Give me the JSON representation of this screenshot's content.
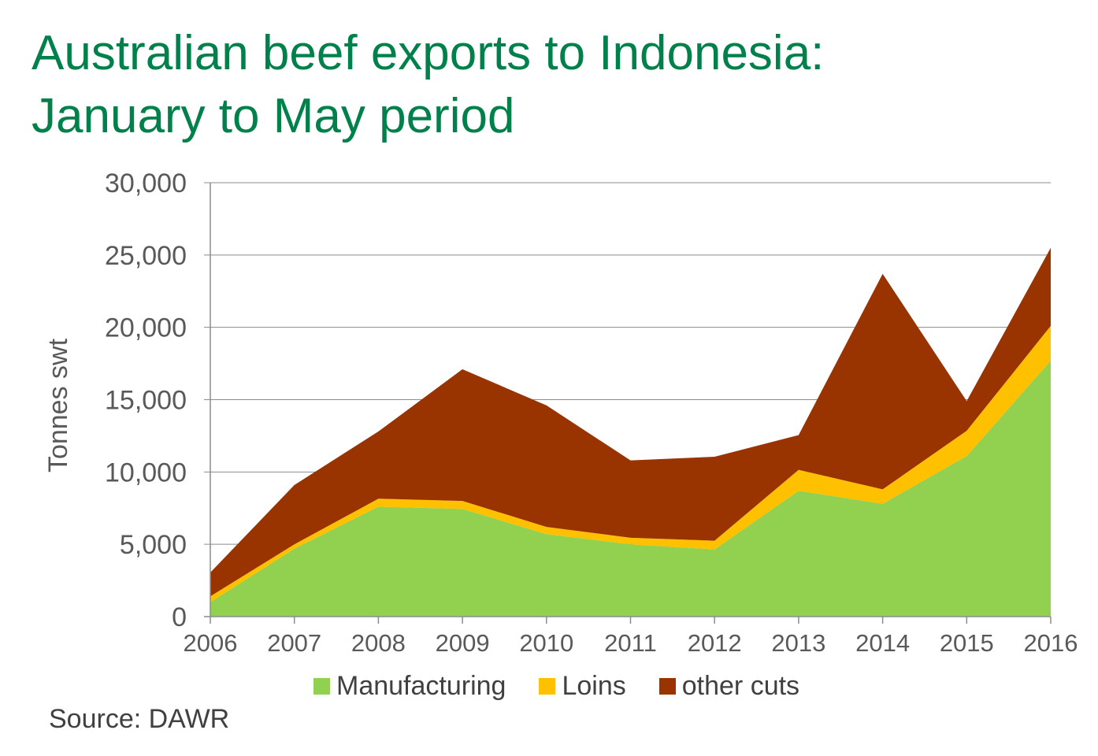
{
  "title_lines": [
    "Australian beef exports to Indonesia:",
    "January to May period"
  ],
  "source": "Source: DAWR",
  "chart_data": {
    "type": "area",
    "stacked": true,
    "x": [
      "2006",
      "2007",
      "2008",
      "2009",
      "2010",
      "2011",
      "2012",
      "2013",
      "2014",
      "2015",
      "2016"
    ],
    "series": [
      {
        "name": "Manufacturing",
        "color": "#92d050",
        "values": [
          1000,
          4700,
          7600,
          7450,
          5700,
          5000,
          4650,
          8700,
          7800,
          11100,
          17700
        ]
      },
      {
        "name": "Loins",
        "color": "#ffc000",
        "values": [
          400,
          300,
          550,
          550,
          500,
          450,
          600,
          1450,
          1000,
          1750,
          2400
        ]
      },
      {
        "name": "other cuts",
        "color": "#993300",
        "values": [
          1650,
          4100,
          4650,
          9100,
          8400,
          5350,
          5800,
          2400,
          14900,
          2050,
          5400
        ]
      }
    ],
    "ylabel": "Tonnes swt",
    "xlabel": "",
    "ylim": [
      0,
      30000
    ],
    "yticks": [
      0,
      5000,
      10000,
      15000,
      20000,
      25000,
      30000
    ],
    "ytick_labels": [
      "0",
      "5,000",
      "10,000",
      "15,000",
      "20,000",
      "25,000",
      "30,000"
    ],
    "grid": true,
    "legend_position": "bottom"
  }
}
